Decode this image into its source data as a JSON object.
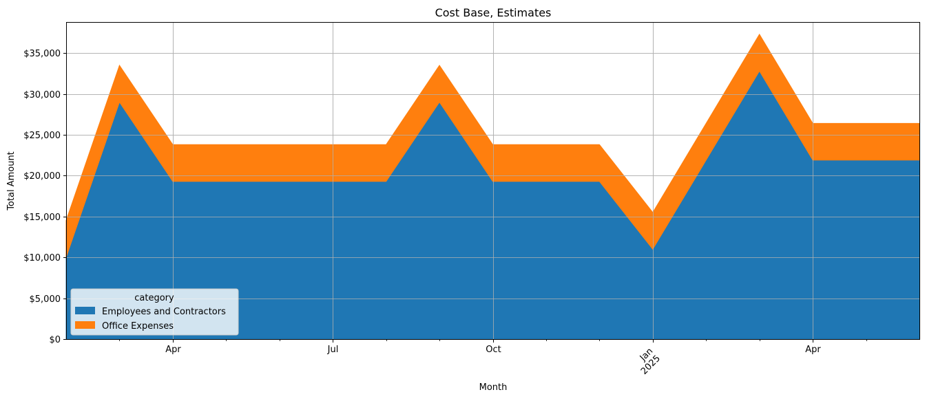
{
  "chart_data": {
    "type": "area",
    "stacked": true,
    "title": "Cost Base, Estimates",
    "xlabel": "Month",
    "ylabel": "Total Amount",
    "ylim": [
      0,
      38800
    ],
    "xlim": [
      "2024-02",
      "2025-06"
    ],
    "grid": true,
    "legend": {
      "title": "category",
      "placement": "lower-left"
    },
    "x": [
      "2024-02",
      "2024-03",
      "2024-04",
      "2024-05",
      "2024-06",
      "2024-07",
      "2024-08",
      "2024-09",
      "2024-10",
      "2024-11",
      "2024-12",
      "2025-01",
      "2025-02",
      "2025-03",
      "2025-04",
      "2025-05",
      "2025-06"
    ],
    "series": [
      {
        "name": "Employees and Contractors",
        "color": "#1f77b4",
        "values": [
          10000,
          29000,
          19300,
          19300,
          19300,
          19300,
          19300,
          29000,
          19300,
          19300,
          19300,
          11000,
          21900,
          32800,
          21900,
          21900,
          21900
        ]
      },
      {
        "name": "Office Expenses",
        "color": "#ff7f0e",
        "values": [
          4500,
          4500,
          4500,
          4500,
          4500,
          4500,
          4500,
          4500,
          4500,
          4500,
          4500,
          4500,
          4500,
          4500,
          4500,
          4500,
          4500
        ]
      }
    ],
    "y_ticks": [
      {
        "value": 0,
        "label": "$0"
      },
      {
        "value": 5000,
        "label": "$5,000"
      },
      {
        "value": 10000,
        "label": "$10,000"
      },
      {
        "value": 15000,
        "label": "$15,000"
      },
      {
        "value": 20000,
        "label": "$20,000"
      },
      {
        "value": 25000,
        "label": "$25,000"
      },
      {
        "value": 30000,
        "label": "$30,000"
      },
      {
        "value": 35000,
        "label": "$35,000"
      }
    ],
    "x_major_ticks": [
      {
        "x": "2024-04",
        "label": "Apr",
        "label2": "",
        "rotated": false
      },
      {
        "x": "2024-07",
        "label": "Jul",
        "label2": "",
        "rotated": false
      },
      {
        "x": "2024-10",
        "label": "Oct",
        "label2": "",
        "rotated": false
      },
      {
        "x": "2025-01",
        "label": "Jan",
        "label2": "2025",
        "rotated": true
      },
      {
        "x": "2025-04",
        "label": "Apr",
        "label2": "",
        "rotated": false
      }
    ],
    "x_minor_ticks": [
      "2024-03",
      "2024-05",
      "2024-06",
      "2024-08",
      "2024-09",
      "2024-11",
      "2024-12",
      "2025-02",
      "2025-03",
      "2025-05"
    ]
  }
}
